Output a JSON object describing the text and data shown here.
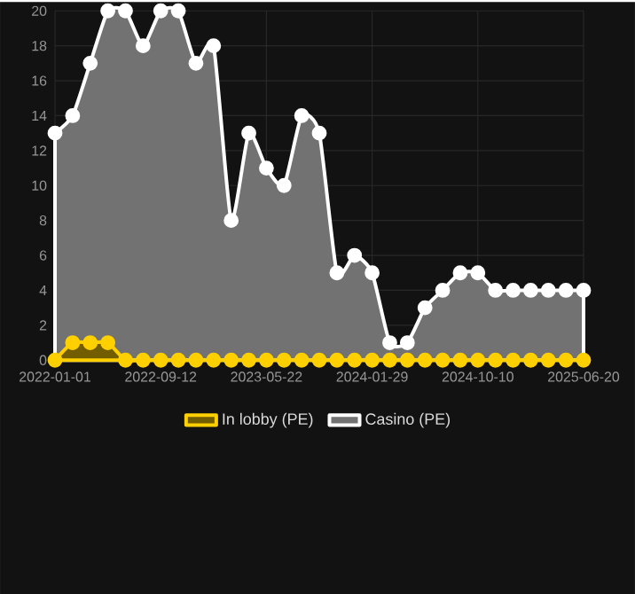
{
  "chart_data": {
    "type": "area",
    "categories": [
      "2022-01-01",
      null,
      null,
      null,
      null,
      null,
      "2022-09-12",
      null,
      null,
      null,
      null,
      null,
      "2023-05-22",
      null,
      null,
      null,
      null,
      null,
      "2024-01-29",
      null,
      null,
      null,
      null,
      null,
      "2024-10-10",
      null,
      null,
      null,
      null,
      null,
      "2025-06-20"
    ],
    "series": [
      {
        "name": "In lobby (PE)",
        "color": "#ffd000",
        "values": [
          0,
          1,
          1,
          1,
          0,
          0,
          0,
          0,
          0,
          0,
          0,
          0,
          0,
          0,
          0,
          0,
          0,
          0,
          0,
          0,
          0,
          0,
          0,
          0,
          0,
          0,
          0,
          0,
          0,
          0,
          0
        ]
      },
      {
        "name": "Casino (PE)",
        "color": "#ffffff",
        "values": [
          13,
          14,
          17,
          20,
          20,
          18,
          20,
          20,
          17,
          18,
          8,
          13,
          11,
          10,
          14,
          13,
          5,
          6,
          5,
          1,
          1,
          3,
          4,
          5,
          5,
          4,
          4,
          4,
          4,
          4,
          4
        ]
      }
    ],
    "ylim": [
      0,
      20
    ],
    "yticks": [
      0,
      2,
      4,
      6,
      8,
      10,
      12,
      14,
      16,
      18,
      20
    ],
    "grid": true,
    "legend": "bottom",
    "marker": "circle"
  }
}
